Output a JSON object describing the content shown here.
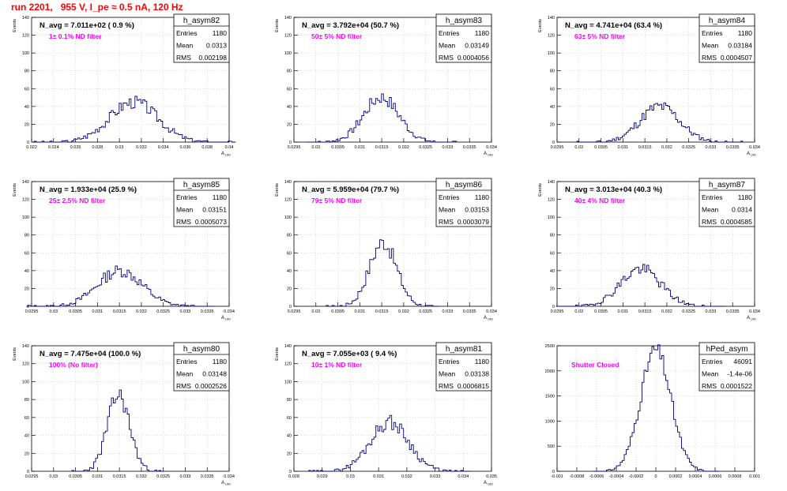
{
  "title": "run 2201,   955 V, I_pe ≈ 0.5 nA, 120 Hz",
  "colors": {
    "title": "#ff0000",
    "label": "#ff00ff",
    "hist": "#000080",
    "grid": "#c8c8c8"
  },
  "chart_data": [
    {
      "type": "bar",
      "name": "h_asym82",
      "nav": "N_avg = 7.011e+02 ( 0.9 %)",
      "label": "1± 0.1% ND filter",
      "stats": {
        "entries": "1180",
        "mean": "0.0313",
        "rms": "0.002198"
      },
      "xlim": [
        0.022,
        0.04
      ],
      "xticks": [
        "0.022",
        "0.024",
        "0.026",
        "0.028",
        "0.03",
        "0.032",
        "0.034",
        "0.036",
        "0.038",
        "0.04"
      ],
      "ylim": [
        0,
        140
      ],
      "yticks": [
        "0",
        "20",
        "40",
        "60",
        "80",
        "100",
        "120",
        "140"
      ],
      "ylabel": "Events",
      "xlabel": "A_uid",
      "bins": {
        "center": 0.0313,
        "sigma": 0.0022,
        "width": 0.00018,
        "peak": 45,
        "seed": 3
      }
    },
    {
      "type": "bar",
      "name": "h_asym83",
      "nav": "N_avg = 3.792e+04 (50.7 %)",
      "label": "50± 5% ND filter",
      "stats": {
        "entries": "1180",
        "mean": "0.03149",
        "rms": "0.0004056"
      },
      "xlim": [
        0.0295,
        0.034
      ],
      "xticks": [
        "0.0295",
        "0.03",
        "0.0305",
        "0.031",
        "0.0315",
        "0.032",
        "0.0325",
        "0.033",
        "0.0335",
        "0.034"
      ],
      "ylim": [
        0,
        140
      ],
      "yticks": [
        "0",
        "20",
        "40",
        "60",
        "80",
        "100",
        "120",
        "140"
      ],
      "ylabel": "Events",
      "xlabel": "A_uid",
      "bins": {
        "center": 0.03149,
        "sigma": 0.000406,
        "width": 4.5e-05,
        "peak": 50,
        "seed": 7
      }
    },
    {
      "type": "bar",
      "name": "h_asym84",
      "nav": "N_avg = 4.741e+04 (63.4 %)",
      "label": "63± 5% ND filter",
      "stats": {
        "entries": "1180",
        "mean": "0.03184",
        "rms": "0.0004507"
      },
      "xlim": [
        0.0295,
        0.034
      ],
      "xticks": [
        "0.0295",
        "0.03",
        "0.0305",
        "0.031",
        "0.0315",
        "0.032",
        "0.0325",
        "0.033",
        "0.0335",
        "0.034"
      ],
      "ylim": [
        0,
        140
      ],
      "yticks": [
        "0",
        "20",
        "40",
        "60",
        "80",
        "100",
        "120",
        "140"
      ],
      "ylabel": "Events",
      "xlabel": "A_uid",
      "bins": {
        "center": 0.03184,
        "sigma": 0.00045,
        "width": 4.5e-05,
        "peak": 40,
        "seed": 11
      }
    },
    {
      "type": "bar",
      "name": "h_asym85",
      "nav": "N_avg = 1.933e+04 (25.9 %)",
      "label": "25± 2.5% ND filter",
      "stats": {
        "entries": "1180",
        "mean": "0.03151",
        "rms": "0.0005073"
      },
      "xlim": [
        0.0295,
        0.034
      ],
      "xticks": [
        "0.0295",
        "0.03",
        "0.0305",
        "0.031",
        "0.0315",
        "0.032",
        "0.0325",
        "0.033",
        "0.0335",
        "0.034"
      ],
      "ylim": [
        0,
        140
      ],
      "yticks": [
        "0",
        "20",
        "40",
        "60",
        "80",
        "100",
        "120",
        "140"
      ],
      "ylabel": "Events",
      "xlabel": "A_uid",
      "bins": {
        "center": 0.03151,
        "sigma": 0.000507,
        "width": 4.5e-05,
        "peak": 40,
        "seed": 13
      }
    },
    {
      "type": "bar",
      "name": "h_asym86",
      "nav": "N_avg = 5.959e+04 (79.7 %)",
      "label": "79± 5% ND filter",
      "stats": {
        "entries": "1180",
        "mean": "0.03153",
        "rms": "0.0003079"
      },
      "xlim": [
        0.0295,
        0.034
      ],
      "xticks": [
        "0.0295",
        "0.03",
        "0.0305",
        "0.031",
        "0.0315",
        "0.032",
        "0.0325",
        "0.033",
        "0.0335",
        "0.034"
      ],
      "ylim": [
        0,
        140
      ],
      "yticks": [
        "0",
        "20",
        "40",
        "60",
        "80",
        "100",
        "120",
        "140"
      ],
      "ylabel": "Events",
      "xlabel": "A_uid",
      "bins": {
        "center": 0.03153,
        "sigma": 0.000308,
        "width": 4.5e-05,
        "peak": 72,
        "seed": 17
      }
    },
    {
      "type": "bar",
      "name": "h_asym87",
      "nav": "N_avg = 3.013e+04 (40.3 %)",
      "label": "40± 4% ND filter",
      "stats": {
        "entries": "1180",
        "mean": "0.0314",
        "rms": "0.0004585"
      },
      "xlim": [
        0.0295,
        0.034
      ],
      "xticks": [
        "0.0295",
        "0.03",
        "0.0305",
        "0.031",
        "0.0315",
        "0.032",
        "0.0325",
        "0.033",
        "0.0335",
        "0.034"
      ],
      "ylim": [
        0,
        140
      ],
      "yticks": [
        "0",
        "20",
        "40",
        "60",
        "80",
        "100",
        "120",
        "140"
      ],
      "ylabel": "Events",
      "xlabel": "A_uid",
      "bins": {
        "center": 0.0314,
        "sigma": 0.000459,
        "width": 4.5e-05,
        "peak": 42,
        "seed": 19
      }
    },
    {
      "type": "bar",
      "name": "h_asym80",
      "nav": "N_avg = 7.475e+04 (100.0 %)",
      "label": "100% (No filter)",
      "stats": {
        "entries": "1180",
        "mean": "0.03148",
        "rms": "0.0002526"
      },
      "xlim": [
        0.0295,
        0.034
      ],
      "xticks": [
        "0.0295",
        "0.03",
        "0.0305",
        "0.031",
        "0.0315",
        "0.032",
        "0.0325",
        "0.033",
        "0.0335",
        "0.034"
      ],
      "ylim": [
        0,
        140
      ],
      "yticks": [
        "0",
        "20",
        "40",
        "60",
        "80",
        "100",
        "120",
        "140"
      ],
      "ylabel": "Events",
      "xlabel": "A_uid",
      "bins": {
        "center": 0.03148,
        "sigma": 0.000253,
        "width": 4.5e-05,
        "peak": 85,
        "seed": 23
      }
    },
    {
      "type": "bar",
      "name": "h_asym81",
      "nav": "N_avg = 7.055e+03 ( 9.4 %)",
      "label": "10± 1% ND filter",
      "stats": {
        "entries": "1180",
        "mean": "0.03138",
        "rms": "0.0006815"
      },
      "xlim": [
        0.028,
        0.035
      ],
      "xticks": [
        "0.028",
        "0.029",
        "0.03",
        "0.031",
        "0.032",
        "0.033",
        "0.034",
        "0.035"
      ],
      "ylim": [
        0,
        140
      ],
      "yticks": [
        "0",
        "20",
        "40",
        "60",
        "80",
        "100",
        "120",
        "140"
      ],
      "ylabel": "Events",
      "xlabel": "A_uid",
      "bins": {
        "center": 0.03138,
        "sigma": 0.00068,
        "width": 7e-05,
        "peak": 55,
        "seed": 29
      }
    },
    {
      "type": "bar",
      "name": "hPed_asym",
      "nav": "",
      "label": "Shutter Closed",
      "stats": {
        "entries": "46091",
        "mean": "-1.4e-06",
        "rms": "0.0001522"
      },
      "xlim": [
        -0.001,
        0.001
      ],
      "xticks": [
        "-0.001",
        "-0.0008",
        "-0.0006",
        "-0.0004",
        "-0.0002",
        "0",
        "0.0002",
        "0.0004",
        "0.0006",
        "0.0008",
        "0.001"
      ],
      "ylim": [
        0,
        2500
      ],
      "yticks": [
        "0",
        "500",
        "1000",
        "1500",
        "2000",
        "2500"
      ],
      "ylabel": "",
      "xlabel": "",
      "bins": {
        "center": -1.4e-06,
        "sigma": 0.000152,
        "width": 2e-05,
        "peak": 2420,
        "seed": 31
      }
    }
  ]
}
